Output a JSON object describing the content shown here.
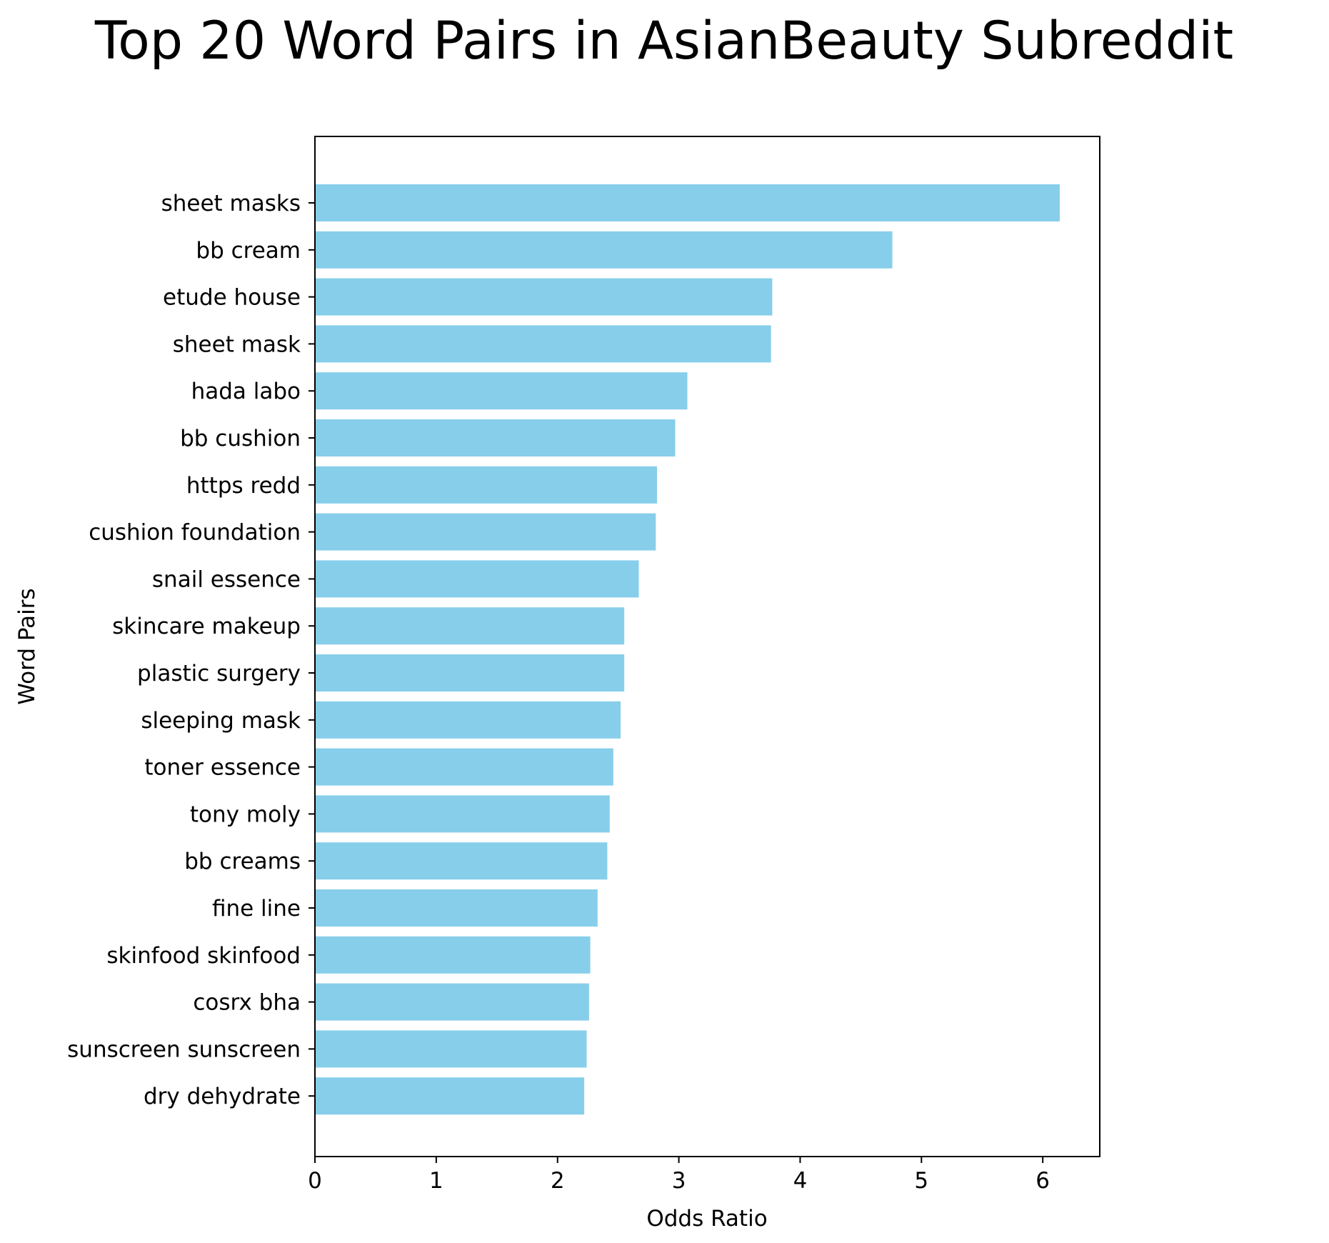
{
  "colors": {
    "bar": "#87CEEB",
    "axis": "#000000",
    "background": "#ffffff"
  },
  "chart_data": {
    "type": "bar",
    "orientation": "horizontal",
    "title": "Top 20 Word Pairs in AsianBeauty Subreddit",
    "xlabel": "Odds Ratio",
    "ylabel": "Word Pairs",
    "xlim": [
      0,
      6.47
    ],
    "xticks": [
      0,
      1,
      2,
      3,
      4,
      5,
      6
    ],
    "grid": false,
    "categories": [
      "sheet masks",
      "bb cream",
      "etude house",
      "sheet mask",
      "hada labo",
      "bb cushion",
      "https redd",
      "cushion foundation",
      "snail essence",
      "skincare makeup",
      "plastic surgery",
      "sleeping mask",
      "toner essence",
      "tony moly",
      "bb creams",
      "fine line",
      "skinfood skinfood",
      "cosrx bha",
      "sunscreen sunscreen",
      "dry dehydrate"
    ],
    "values": [
      6.14,
      4.76,
      3.77,
      3.76,
      3.07,
      2.97,
      2.82,
      2.81,
      2.67,
      2.55,
      2.55,
      2.52,
      2.46,
      2.43,
      2.41,
      2.33,
      2.27,
      2.26,
      2.24,
      2.22
    ]
  }
}
